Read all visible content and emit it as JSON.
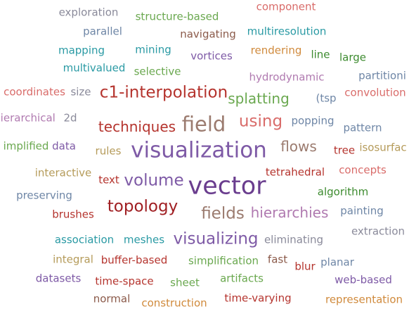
{
  "palette": {
    "purple": "#7e5aa6",
    "red": "#b5342e",
    "rose": "#d96c6a",
    "teal": "#2a9aa4",
    "green": "#6aa84f",
    "darkgreen": "#3d8b2f",
    "olive": "#b59b5a",
    "taupe": "#9b7b6f",
    "gray": "#8a8a9a",
    "slate": "#6e86a6",
    "brown": "#8b5a4a",
    "orange": "#d08a3c",
    "lavender": "#b07ab0",
    "darkpurple": "#6a3d8e",
    "darkred": "#a01f23"
  },
  "words": [
    {
      "text": "exploration",
      "color": "gray",
      "weight": 2
    },
    {
      "text": "structure-based",
      "color": "green",
      "weight": 2
    },
    {
      "text": "component",
      "color": "rose",
      "weight": 2
    },
    {
      "text": "parallel",
      "color": "slate",
      "weight": 2
    },
    {
      "text": "navigating",
      "color": "brown",
      "weight": 2
    },
    {
      "text": "multiresolution",
      "color": "teal",
      "weight": 2
    },
    {
      "text": "mapping",
      "color": "teal",
      "weight": 2
    },
    {
      "text": "mining",
      "color": "teal",
      "weight": 2
    },
    {
      "text": "vortices",
      "color": "purple",
      "weight": 2
    },
    {
      "text": "rendering",
      "color": "orange",
      "weight": 2
    },
    {
      "text": "line",
      "color": "darkgreen",
      "weight": 2
    },
    {
      "text": "large",
      "color": "darkgreen",
      "weight": 2
    },
    {
      "text": "multivalued",
      "color": "teal",
      "weight": 2
    },
    {
      "text": "selective",
      "color": "green",
      "weight": 2
    },
    {
      "text": "hydrodynamic",
      "color": "lavender",
      "weight": 2
    },
    {
      "text": "partitioni",
      "color": "slate",
      "weight": 2
    },
    {
      "text": "coordinates",
      "color": "rose",
      "weight": 2
    },
    {
      "text": "size",
      "color": "gray",
      "weight": 2
    },
    {
      "text": "c1-interpolation",
      "color": "red",
      "weight": 4
    },
    {
      "text": "splatting",
      "color": "green",
      "weight": 3
    },
    {
      "text": "(tsp",
      "color": "slate",
      "weight": 2
    },
    {
      "text": "convolution",
      "color": "rose",
      "weight": 2
    },
    {
      "text": "hierarchical",
      "color": "lavender",
      "weight": 2
    },
    {
      "text": "2d",
      "color": "gray",
      "weight": 2
    },
    {
      "text": "techniques",
      "color": "red",
      "weight": 3
    },
    {
      "text": "field",
      "color": "taupe",
      "weight": 5
    },
    {
      "text": "using",
      "color": "rose",
      "weight": 4
    },
    {
      "text": "popping",
      "color": "slate",
      "weight": 2
    },
    {
      "text": "pattern",
      "color": "slate",
      "weight": 2
    },
    {
      "text": "implified",
      "color": "green",
      "weight": 2
    },
    {
      "text": "data",
      "color": "purple",
      "weight": 2
    },
    {
      "text": "rules",
      "color": "olive",
      "weight": 2
    },
    {
      "text": "visualization",
      "color": "purple",
      "weight": 6
    },
    {
      "text": "flows",
      "color": "taupe",
      "weight": 3
    },
    {
      "text": "tree",
      "color": "red",
      "weight": 2
    },
    {
      "text": "isosurfac",
      "color": "olive",
      "weight": 2
    },
    {
      "text": "interactive",
      "color": "olive",
      "weight": 2
    },
    {
      "text": "text",
      "color": "red",
      "weight": 2
    },
    {
      "text": "volume",
      "color": "purple",
      "weight": 4
    },
    {
      "text": "vector",
      "color": "darkpurple",
      "weight": 7
    },
    {
      "text": "tetrahedral",
      "color": "red",
      "weight": 2
    },
    {
      "text": "concepts",
      "color": "rose",
      "weight": 2
    },
    {
      "text": "preserving",
      "color": "slate",
      "weight": 2
    },
    {
      "text": "algorithm",
      "color": "darkgreen",
      "weight": 2
    },
    {
      "text": "topology",
      "color": "darkred",
      "weight": 4
    },
    {
      "text": "brushes",
      "color": "red",
      "weight": 2
    },
    {
      "text": "fields",
      "color": "taupe",
      "weight": 4
    },
    {
      "text": "hierarchies",
      "color": "lavender",
      "weight": 3
    },
    {
      "text": "painting",
      "color": "slate",
      "weight": 2
    },
    {
      "text": "extraction",
      "color": "gray",
      "weight": 2
    },
    {
      "text": "association",
      "color": "teal",
      "weight": 2
    },
    {
      "text": "meshes",
      "color": "teal",
      "weight": 2
    },
    {
      "text": "visualizing",
      "color": "purple",
      "weight": 4
    },
    {
      "text": "eliminating",
      "color": "gray",
      "weight": 2
    },
    {
      "text": "integral",
      "color": "olive",
      "weight": 2
    },
    {
      "text": "buffer-based",
      "color": "red",
      "weight": 2
    },
    {
      "text": "simplification",
      "color": "green",
      "weight": 2
    },
    {
      "text": "fast",
      "color": "brown",
      "weight": 2
    },
    {
      "text": "blur",
      "color": "red",
      "weight": 2
    },
    {
      "text": "planar",
      "color": "slate",
      "weight": 2
    },
    {
      "text": "datasets",
      "color": "purple",
      "weight": 2
    },
    {
      "text": "time-space",
      "color": "red",
      "weight": 2
    },
    {
      "text": "sheet",
      "color": "green",
      "weight": 2
    },
    {
      "text": "artifacts",
      "color": "green",
      "weight": 2
    },
    {
      "text": "web-based",
      "color": "purple",
      "weight": 2
    },
    {
      "text": "normal",
      "color": "brown",
      "weight": 2
    },
    {
      "text": "construction",
      "color": "orange",
      "weight": 2
    },
    {
      "text": "time-varying",
      "color": "red",
      "weight": 2
    },
    {
      "text": "representation",
      "color": "orange",
      "weight": 2
    }
  ]
}
